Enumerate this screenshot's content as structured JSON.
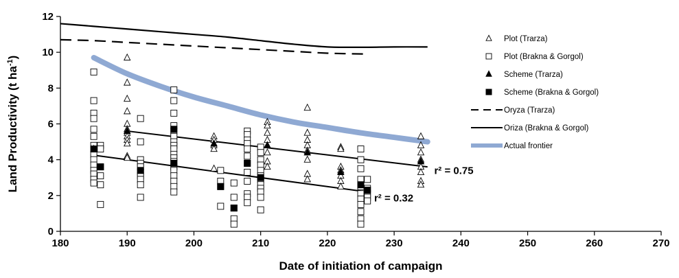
{
  "chart_data": {
    "type": "scatter",
    "xlabel": "Date of initiation of campaign",
    "ylabel": "Land Productivity (t ha",
    "ylabel_sup": "-1",
    "ylabel_close": ")",
    "xlim": [
      180,
      270
    ],
    "ylim": [
      0,
      12
    ],
    "xticks": [
      180,
      190,
      200,
      210,
      220,
      230,
      240,
      250,
      260,
      270
    ],
    "yticks": [
      0,
      2,
      4,
      6,
      8,
      10,
      12
    ],
    "grid": false,
    "legend_position": "top-right",
    "series": [
      {
        "name": "Plot (Trarza)",
        "marker": "open-triangle",
        "points": [
          [
            185,
            4.7
          ],
          [
            185,
            4.4
          ],
          [
            190,
            9.7
          ],
          [
            190,
            8.3
          ],
          [
            190,
            7.4
          ],
          [
            190,
            6.7
          ],
          [
            190,
            6.0
          ],
          [
            190,
            5.7
          ],
          [
            190,
            5.5
          ],
          [
            190,
            5.3
          ],
          [
            190,
            5.1
          ],
          [
            190,
            4.9
          ],
          [
            190,
            4.2
          ],
          [
            190,
            4.1
          ],
          [
            203,
            5.3
          ],
          [
            203,
            5.1
          ],
          [
            203,
            4.8
          ],
          [
            203,
            4.6
          ],
          [
            203,
            3.5
          ],
          [
            211,
            6.1
          ],
          [
            211,
            5.9
          ],
          [
            211,
            5.5
          ],
          [
            211,
            5.1
          ],
          [
            211,
            4.8
          ],
          [
            211,
            4.4
          ],
          [
            211,
            3.9
          ],
          [
            211,
            3.6
          ],
          [
            217,
            6.9
          ],
          [
            217,
            5.5
          ],
          [
            217,
            5.1
          ],
          [
            217,
            4.8
          ],
          [
            217,
            4.5
          ],
          [
            217,
            4.0
          ],
          [
            217,
            3.2
          ],
          [
            217,
            2.9
          ],
          [
            222,
            4.7
          ],
          [
            222,
            4.6
          ],
          [
            222,
            3.6
          ],
          [
            222,
            3.4
          ],
          [
            222,
            3.1
          ],
          [
            222,
            2.8
          ],
          [
            222,
            2.5
          ],
          [
            234,
            5.3
          ],
          [
            234,
            4.8
          ],
          [
            234,
            4.4
          ],
          [
            234,
            4.0
          ],
          [
            234,
            3.6
          ],
          [
            234,
            3.3
          ],
          [
            234,
            2.8
          ],
          [
            234,
            2.6
          ]
        ]
      },
      {
        "name": "Plot (Brakna & Gorgol)",
        "marker": "open-square",
        "points": [
          [
            185,
            8.9
          ],
          [
            185,
            7.3
          ],
          [
            185,
            6.6
          ],
          [
            185,
            6.3
          ],
          [
            185,
            5.7
          ],
          [
            185,
            5.3
          ],
          [
            185,
            4.8
          ],
          [
            185,
            4.3
          ],
          [
            185,
            4.0
          ],
          [
            185,
            3.7
          ],
          [
            185,
            3.4
          ],
          [
            185,
            3.2
          ],
          [
            185,
            2.9
          ],
          [
            185,
            2.7
          ],
          [
            186,
            4.8
          ],
          [
            186,
            4.6
          ],
          [
            186,
            3.6
          ],
          [
            186,
            3.1
          ],
          [
            186,
            2.6
          ],
          [
            186,
            1.5
          ],
          [
            192,
            6.3
          ],
          [
            192,
            5.0
          ],
          [
            192,
            4.0
          ],
          [
            192,
            3.8
          ],
          [
            192,
            3.6
          ],
          [
            192,
            3.3
          ],
          [
            192,
            3.1
          ],
          [
            192,
            2.9
          ],
          [
            192,
            2.6
          ],
          [
            192,
            1.9
          ],
          [
            197,
            7.9
          ],
          [
            197,
            7.3
          ],
          [
            197,
            6.6
          ],
          [
            197,
            5.9
          ],
          [
            197,
            5.6
          ],
          [
            197,
            5.3
          ],
          [
            197,
            5.0
          ],
          [
            197,
            4.8
          ],
          [
            197,
            4.6
          ],
          [
            197,
            4.3
          ],
          [
            197,
            4.1
          ],
          [
            197,
            3.9
          ],
          [
            197,
            3.6
          ],
          [
            197,
            3.4
          ],
          [
            197,
            3.1
          ],
          [
            197,
            2.8
          ],
          [
            197,
            2.5
          ],
          [
            197,
            2.2
          ],
          [
            204,
            3.4
          ],
          [
            204,
            2.8
          ],
          [
            204,
            2.5
          ],
          [
            204,
            1.4
          ],
          [
            206,
            2.7
          ],
          [
            206,
            1.9
          ],
          [
            206,
            1.3
          ],
          [
            206,
            0.7
          ],
          [
            206,
            0.4
          ],
          [
            208,
            5.6
          ],
          [
            208,
            5.4
          ],
          [
            208,
            5.1
          ],
          [
            208,
            4.9
          ],
          [
            208,
            4.6
          ],
          [
            208,
            4.2
          ],
          [
            208,
            3.8
          ],
          [
            208,
            3.3
          ],
          [
            208,
            2.8
          ],
          [
            208,
            2.1
          ],
          [
            208,
            1.9
          ],
          [
            208,
            1.6
          ],
          [
            210,
            4.7
          ],
          [
            210,
            4.4
          ],
          [
            210,
            4.0
          ],
          [
            210,
            3.7
          ],
          [
            210,
            3.4
          ],
          [
            210,
            3.1
          ],
          [
            210,
            2.9
          ],
          [
            210,
            2.6
          ],
          [
            210,
            2.4
          ],
          [
            210,
            2.2
          ],
          [
            210,
            1.9
          ],
          [
            210,
            1.2
          ],
          [
            225,
            4.6
          ],
          [
            225,
            4.0
          ],
          [
            225,
            3.5
          ],
          [
            225,
            2.9
          ],
          [
            225,
            2.5
          ],
          [
            225,
            2.1
          ],
          [
            225,
            1.8
          ],
          [
            225,
            1.5
          ],
          [
            225,
            1.1
          ],
          [
            225,
            0.7
          ],
          [
            225,
            0.4
          ],
          [
            226,
            2.9
          ],
          [
            226,
            2.4
          ],
          [
            226,
            2.1
          ],
          [
            226,
            1.9
          ],
          [
            226,
            1.7
          ]
        ]
      },
      {
        "name": "Scheme (Trarza)",
        "marker": "filled-triangle",
        "points": [
          [
            185,
            4.6
          ],
          [
            190,
            5.6
          ],
          [
            203,
            4.9
          ],
          [
            211,
            4.8
          ],
          [
            217,
            4.4
          ],
          [
            222,
            3.3
          ],
          [
            234,
            3.9
          ]
        ]
      },
      {
        "name": "Scheme (Brakna & Gorgol)",
        "marker": "filled-square",
        "points": [
          [
            185,
            4.6
          ],
          [
            186,
            3.6
          ],
          [
            192,
            3.4
          ],
          [
            197,
            5.7
          ],
          [
            197,
            3.8
          ],
          [
            204,
            2.5
          ],
          [
            206,
            1.3
          ],
          [
            208,
            3.8
          ],
          [
            210,
            3.0
          ],
          [
            225,
            2.6
          ],
          [
            226,
            2.3
          ]
        ]
      },
      {
        "name": "Oryza (Trarza)",
        "line": "dashed",
        "points": [
          [
            180,
            10.7
          ],
          [
            185,
            10.65
          ],
          [
            190,
            10.55
          ],
          [
            195,
            10.45
          ],
          [
            200,
            10.35
          ],
          [
            205,
            10.25
          ],
          [
            210,
            10.15
          ],
          [
            215,
            10.05
          ],
          [
            220,
            9.95
          ],
          [
            226,
            9.9
          ]
        ]
      },
      {
        "name": "Oriza (Brakna & Gorgol)",
        "line": "solid",
        "points": [
          [
            180,
            11.6
          ],
          [
            185,
            11.45
          ],
          [
            190,
            11.3
          ],
          [
            195,
            11.15
          ],
          [
            200,
            11.0
          ],
          [
            205,
            10.85
          ],
          [
            210,
            10.65
          ],
          [
            215,
            10.45
          ],
          [
            220,
            10.3
          ],
          [
            225,
            10.28
          ],
          [
            230,
            10.3
          ],
          [
            235,
            10.3
          ]
        ]
      },
      {
        "name": "Actual frontier",
        "line": "thick",
        "color": "#8fa9d3",
        "points": [
          [
            185,
            9.7
          ],
          [
            190,
            8.8
          ],
          [
            195,
            8.1
          ],
          [
            200,
            7.5
          ],
          [
            205,
            7.0
          ],
          [
            210,
            6.5
          ],
          [
            215,
            6.1
          ],
          [
            220,
            5.8
          ],
          [
            225,
            5.5
          ],
          [
            230,
            5.25
          ],
          [
            235,
            5.0
          ]
        ]
      }
    ],
    "trendlines": [
      {
        "points": [
          [
            190,
            5.6
          ],
          [
            235,
            3.6
          ]
        ],
        "label": "r² = 0.75",
        "label_at": [
          236,
          3.4
        ]
      },
      {
        "points": [
          [
            185,
            4.25
          ],
          [
            226,
            2.2
          ]
        ],
        "label": "r² = 0.32",
        "label_at": [
          227,
          1.85
        ]
      }
    ]
  }
}
